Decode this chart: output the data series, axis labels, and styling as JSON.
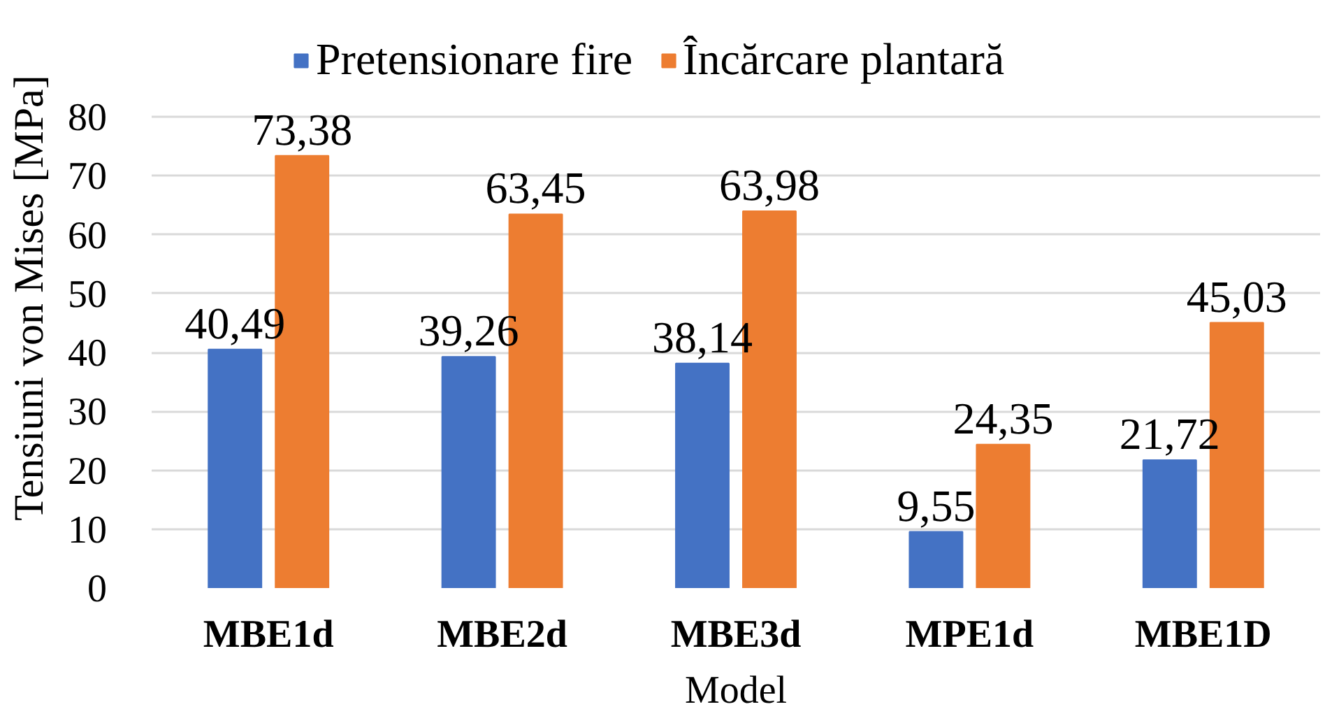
{
  "chart_data": {
    "type": "bar",
    "xlabel": "Model",
    "ylabel": "Tensiuni von Mises [MPa]",
    "categories": [
      "MBE1d",
      "MBE2d",
      "MBE3d",
      "MPE1d",
      "MBE1D"
    ],
    "series": [
      {
        "name": "Pretensionare fire",
        "color": "#4472c4",
        "values": [
          40.49,
          39.26,
          38.14,
          9.55,
          21.72
        ],
        "value_labels": [
          "40,49",
          "39,26",
          "38,14",
          "9,55",
          "21,72"
        ]
      },
      {
        "name": "Încărcare plantară",
        "color": "#ed7d31",
        "values": [
          73.38,
          63.45,
          63.98,
          24.35,
          45.03
        ],
        "value_labels": [
          "73,38",
          "63,45",
          "63,98",
          "24,35",
          "45,03"
        ]
      }
    ],
    "ylim": [
      0,
      80
    ],
    "yticks": [
      0,
      10,
      20,
      30,
      40,
      50,
      60,
      70,
      80
    ],
    "grid": "y",
    "legend": "top"
  }
}
